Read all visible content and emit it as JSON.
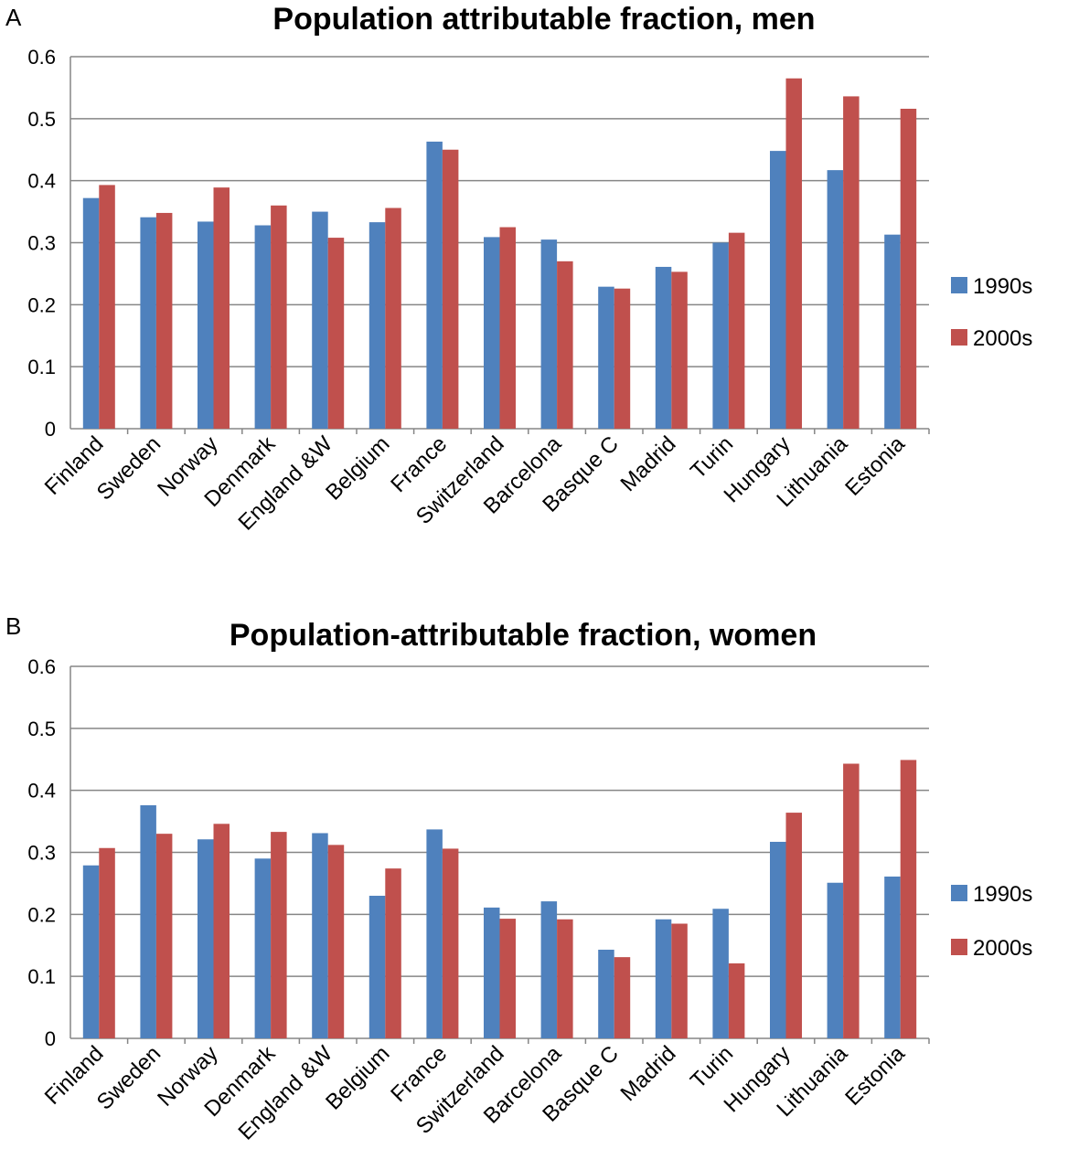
{
  "chart_data": [
    {
      "panel": "A",
      "type": "bar",
      "title": "Population attributable fraction, men",
      "xlabel": "",
      "ylabel": "",
      "ylim": [
        0,
        0.6
      ],
      "yticks": [
        "0",
        "0.1",
        "0.2",
        "0.3",
        "0.4",
        "0.5",
        "0.6"
      ],
      "grid": true,
      "legend_position": "right",
      "categories": [
        "Finland",
        "Sweden",
        "Norway",
        "Denmark",
        "England &W",
        "Belgium",
        "France",
        "Switzerland",
        "Barcelona",
        "Basque C",
        "Madrid",
        "Turin",
        "Hungary",
        "Lithuania",
        "Estonia"
      ],
      "series": [
        {
          "name": "1990s",
          "color": "#4F81BD",
          "values": [
            0.372,
            0.341,
            0.334,
            0.328,
            0.35,
            0.333,
            0.463,
            0.309,
            0.305,
            0.229,
            0.261,
            0.3,
            0.448,
            0.417,
            0.313
          ]
        },
        {
          "name": "2000s",
          "color": "#C0504D",
          "values": [
            0.393,
            0.348,
            0.389,
            0.36,
            0.308,
            0.356,
            0.45,
            0.325,
            0.27,
            0.226,
            0.253,
            0.316,
            0.565,
            0.536,
            0.516
          ]
        }
      ]
    },
    {
      "panel": "B",
      "type": "bar",
      "title": "Population-attributable fraction, women",
      "xlabel": "",
      "ylabel": "",
      "ylim": [
        0,
        0.6
      ],
      "yticks": [
        "0",
        "0.1",
        "0.2",
        "0.3",
        "0.4",
        "0.5",
        "0.6"
      ],
      "grid": true,
      "legend_position": "right",
      "categories": [
        "Finland",
        "Sweden",
        "Norway",
        "Denmark",
        "England &W",
        "Belgium",
        "France",
        "Switzerland",
        "Barcelona",
        "Basque C",
        "Madrid",
        "Turin",
        "Hungary",
        "Lithuania",
        "Estonia"
      ],
      "series": [
        {
          "name": "1990s",
          "color": "#4F81BD",
          "values": [
            0.279,
            0.376,
            0.321,
            0.29,
            0.331,
            0.23,
            0.337,
            0.211,
            0.221,
            0.143,
            0.192,
            0.209,
            0.317,
            0.251,
            0.261
          ]
        },
        {
          "name": "2000s",
          "color": "#C0504D",
          "values": [
            0.307,
            0.33,
            0.346,
            0.333,
            0.312,
            0.274,
            0.306,
            0.193,
            0.192,
            0.131,
            0.185,
            0.121,
            0.364,
            0.443,
            0.449
          ]
        }
      ]
    }
  ]
}
